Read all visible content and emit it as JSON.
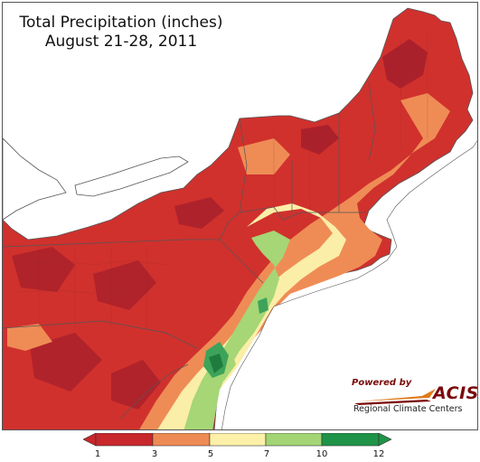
{
  "title": {
    "line1": "Total Precipitation (inches)",
    "line2": "August 21-28, 2011"
  },
  "logo": {
    "powered_by": "Powered by",
    "name": "ACIS",
    "subtitle": "Regional Climate Centers"
  },
  "legend": {
    "ticks": [
      "1",
      "3",
      "5",
      "7",
      "10",
      "12"
    ],
    "colors": [
      "#c8272c",
      "#ee8a54",
      "#fdf0a8",
      "#a3d574",
      "#1f9347"
    ]
  },
  "colors": {
    "dark_red": "#a51f2b",
    "red": "#d0312d",
    "orange": "#ef8c56",
    "yellow": "#fbeea8",
    "light_green": "#a6d675",
    "green": "#3da35a",
    "dark_green": "#1e7d3e",
    "land_outside": "#ffffff",
    "lake": "#ffffff"
  }
}
